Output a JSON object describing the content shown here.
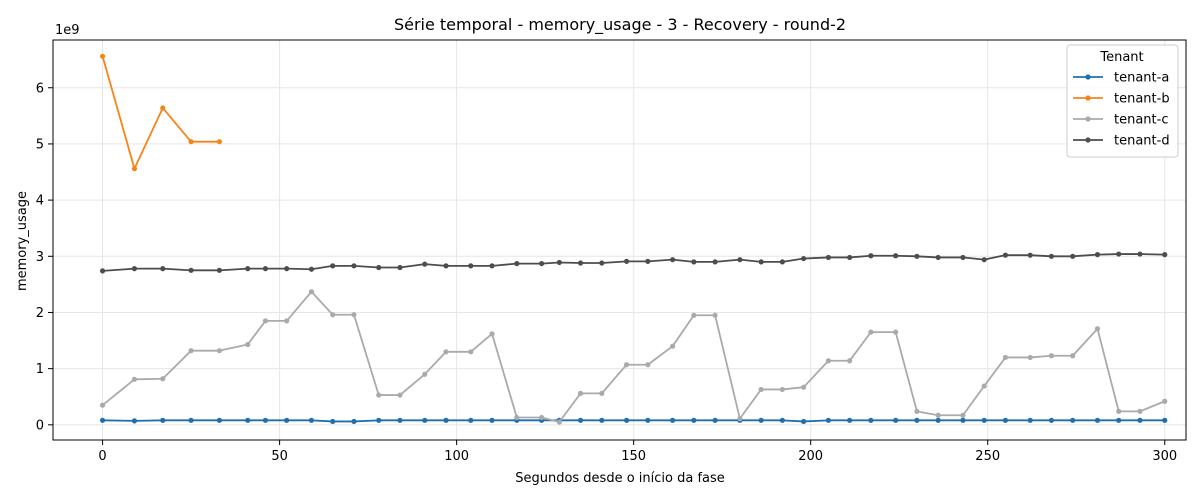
{
  "chart_data": {
    "type": "line",
    "title": "Série temporal - memory_usage - 3 - Recovery - round-2",
    "xlabel": "Segundos desde o início da fase",
    "ylabel": "memory_usage",
    "y_offset_label": "1e9",
    "xlim": [
      -14,
      306
    ],
    "ylim": [
      -0.27,
      6.85
    ],
    "x_ticks": [
      0,
      50,
      100,
      150,
      200,
      250,
      300
    ],
    "y_ticks": [
      0,
      1,
      2,
      3,
      4,
      5,
      6
    ],
    "grid": true,
    "legend": {
      "title": "Tenant",
      "placement": "top-right"
    },
    "series": [
      {
        "name": "tenant-a",
        "color": "#1f6fb0",
        "x": [
          0,
          9,
          17,
          25,
          33,
          41,
          46,
          52,
          59,
          65,
          71,
          78,
          84,
          91,
          97,
          104,
          110,
          117,
          124,
          129,
          135,
          141,
          148,
          154,
          161,
          167,
          173,
          180,
          186,
          192,
          198,
          205,
          211,
          217,
          224,
          230,
          236,
          243,
          249,
          255,
          262,
          268,
          274,
          281,
          287,
          293,
          300
        ],
        "y": [
          0.08,
          0.07,
          0.08,
          0.08,
          0.08,
          0.08,
          0.08,
          0.08,
          0.08,
          0.06,
          0.06,
          0.08,
          0.08,
          0.08,
          0.08,
          0.08,
          0.08,
          0.08,
          0.08,
          0.08,
          0.08,
          0.08,
          0.08,
          0.08,
          0.08,
          0.08,
          0.08,
          0.08,
          0.08,
          0.08,
          0.06,
          0.08,
          0.08,
          0.08,
          0.08,
          0.08,
          0.08,
          0.08,
          0.08,
          0.08,
          0.08,
          0.08,
          0.08,
          0.08,
          0.08,
          0.08,
          0.08
        ]
      },
      {
        "name": "tenant-b",
        "color": "#f58518",
        "x": [
          0,
          9,
          17,
          25,
          33
        ],
        "y": [
          6.56,
          4.56,
          5.64,
          5.04,
          5.04
        ]
      },
      {
        "name": "tenant-c",
        "color": "#aaaaaa",
        "x": [
          0,
          9,
          17,
          25,
          33,
          41,
          46,
          52,
          59,
          65,
          71,
          78,
          84,
          91,
          97,
          104,
          110,
          117,
          124,
          129,
          135,
          141,
          148,
          154,
          161,
          167,
          173,
          180,
          186,
          192,
          198,
          205,
          211,
          217,
          224,
          230,
          236,
          243,
          249,
          255,
          262,
          268,
          274,
          281,
          287,
          293,
          300
        ],
        "y": [
          0.35,
          0.81,
          0.82,
          1.32,
          1.32,
          1.43,
          1.85,
          1.85,
          2.37,
          1.96,
          1.96,
          0.53,
          0.53,
          0.9,
          1.3,
          1.3,
          1.62,
          0.13,
          0.13,
          0.05,
          0.56,
          0.56,
          1.07,
          1.07,
          1.4,
          1.95,
          1.95,
          0.11,
          0.63,
          0.63,
          0.67,
          1.14,
          1.14,
          1.65,
          1.65,
          0.24,
          0.17,
          0.17,
          0.69,
          1.2,
          1.2,
          1.23,
          1.23,
          1.71,
          0.24,
          0.24,
          0.42
        ]
      },
      {
        "name": "tenant-d",
        "color": "#4d4d4d",
        "x": [
          0,
          9,
          17,
          25,
          33,
          41,
          46,
          52,
          59,
          65,
          71,
          78,
          84,
          91,
          97,
          104,
          110,
          117,
          124,
          129,
          135,
          141,
          148,
          154,
          161,
          167,
          173,
          180,
          186,
          192,
          198,
          205,
          211,
          217,
          224,
          230,
          236,
          243,
          249,
          255,
          262,
          268,
          274,
          281,
          287,
          293,
          300
        ],
        "y": [
          2.74,
          2.78,
          2.78,
          2.75,
          2.75,
          2.78,
          2.78,
          2.78,
          2.77,
          2.83,
          2.83,
          2.8,
          2.8,
          2.86,
          2.83,
          2.83,
          2.83,
          2.87,
          2.87,
          2.89,
          2.88,
          2.88,
          2.91,
          2.91,
          2.94,
          2.9,
          2.9,
          2.94,
          2.9,
          2.9,
          2.96,
          2.98,
          2.98,
          3.01,
          3.01,
          3.0,
          2.98,
          2.98,
          2.94,
          3.02,
          3.02,
          3.0,
          3.0,
          3.03,
          3.04,
          3.04,
          3.03
        ]
      }
    ]
  }
}
